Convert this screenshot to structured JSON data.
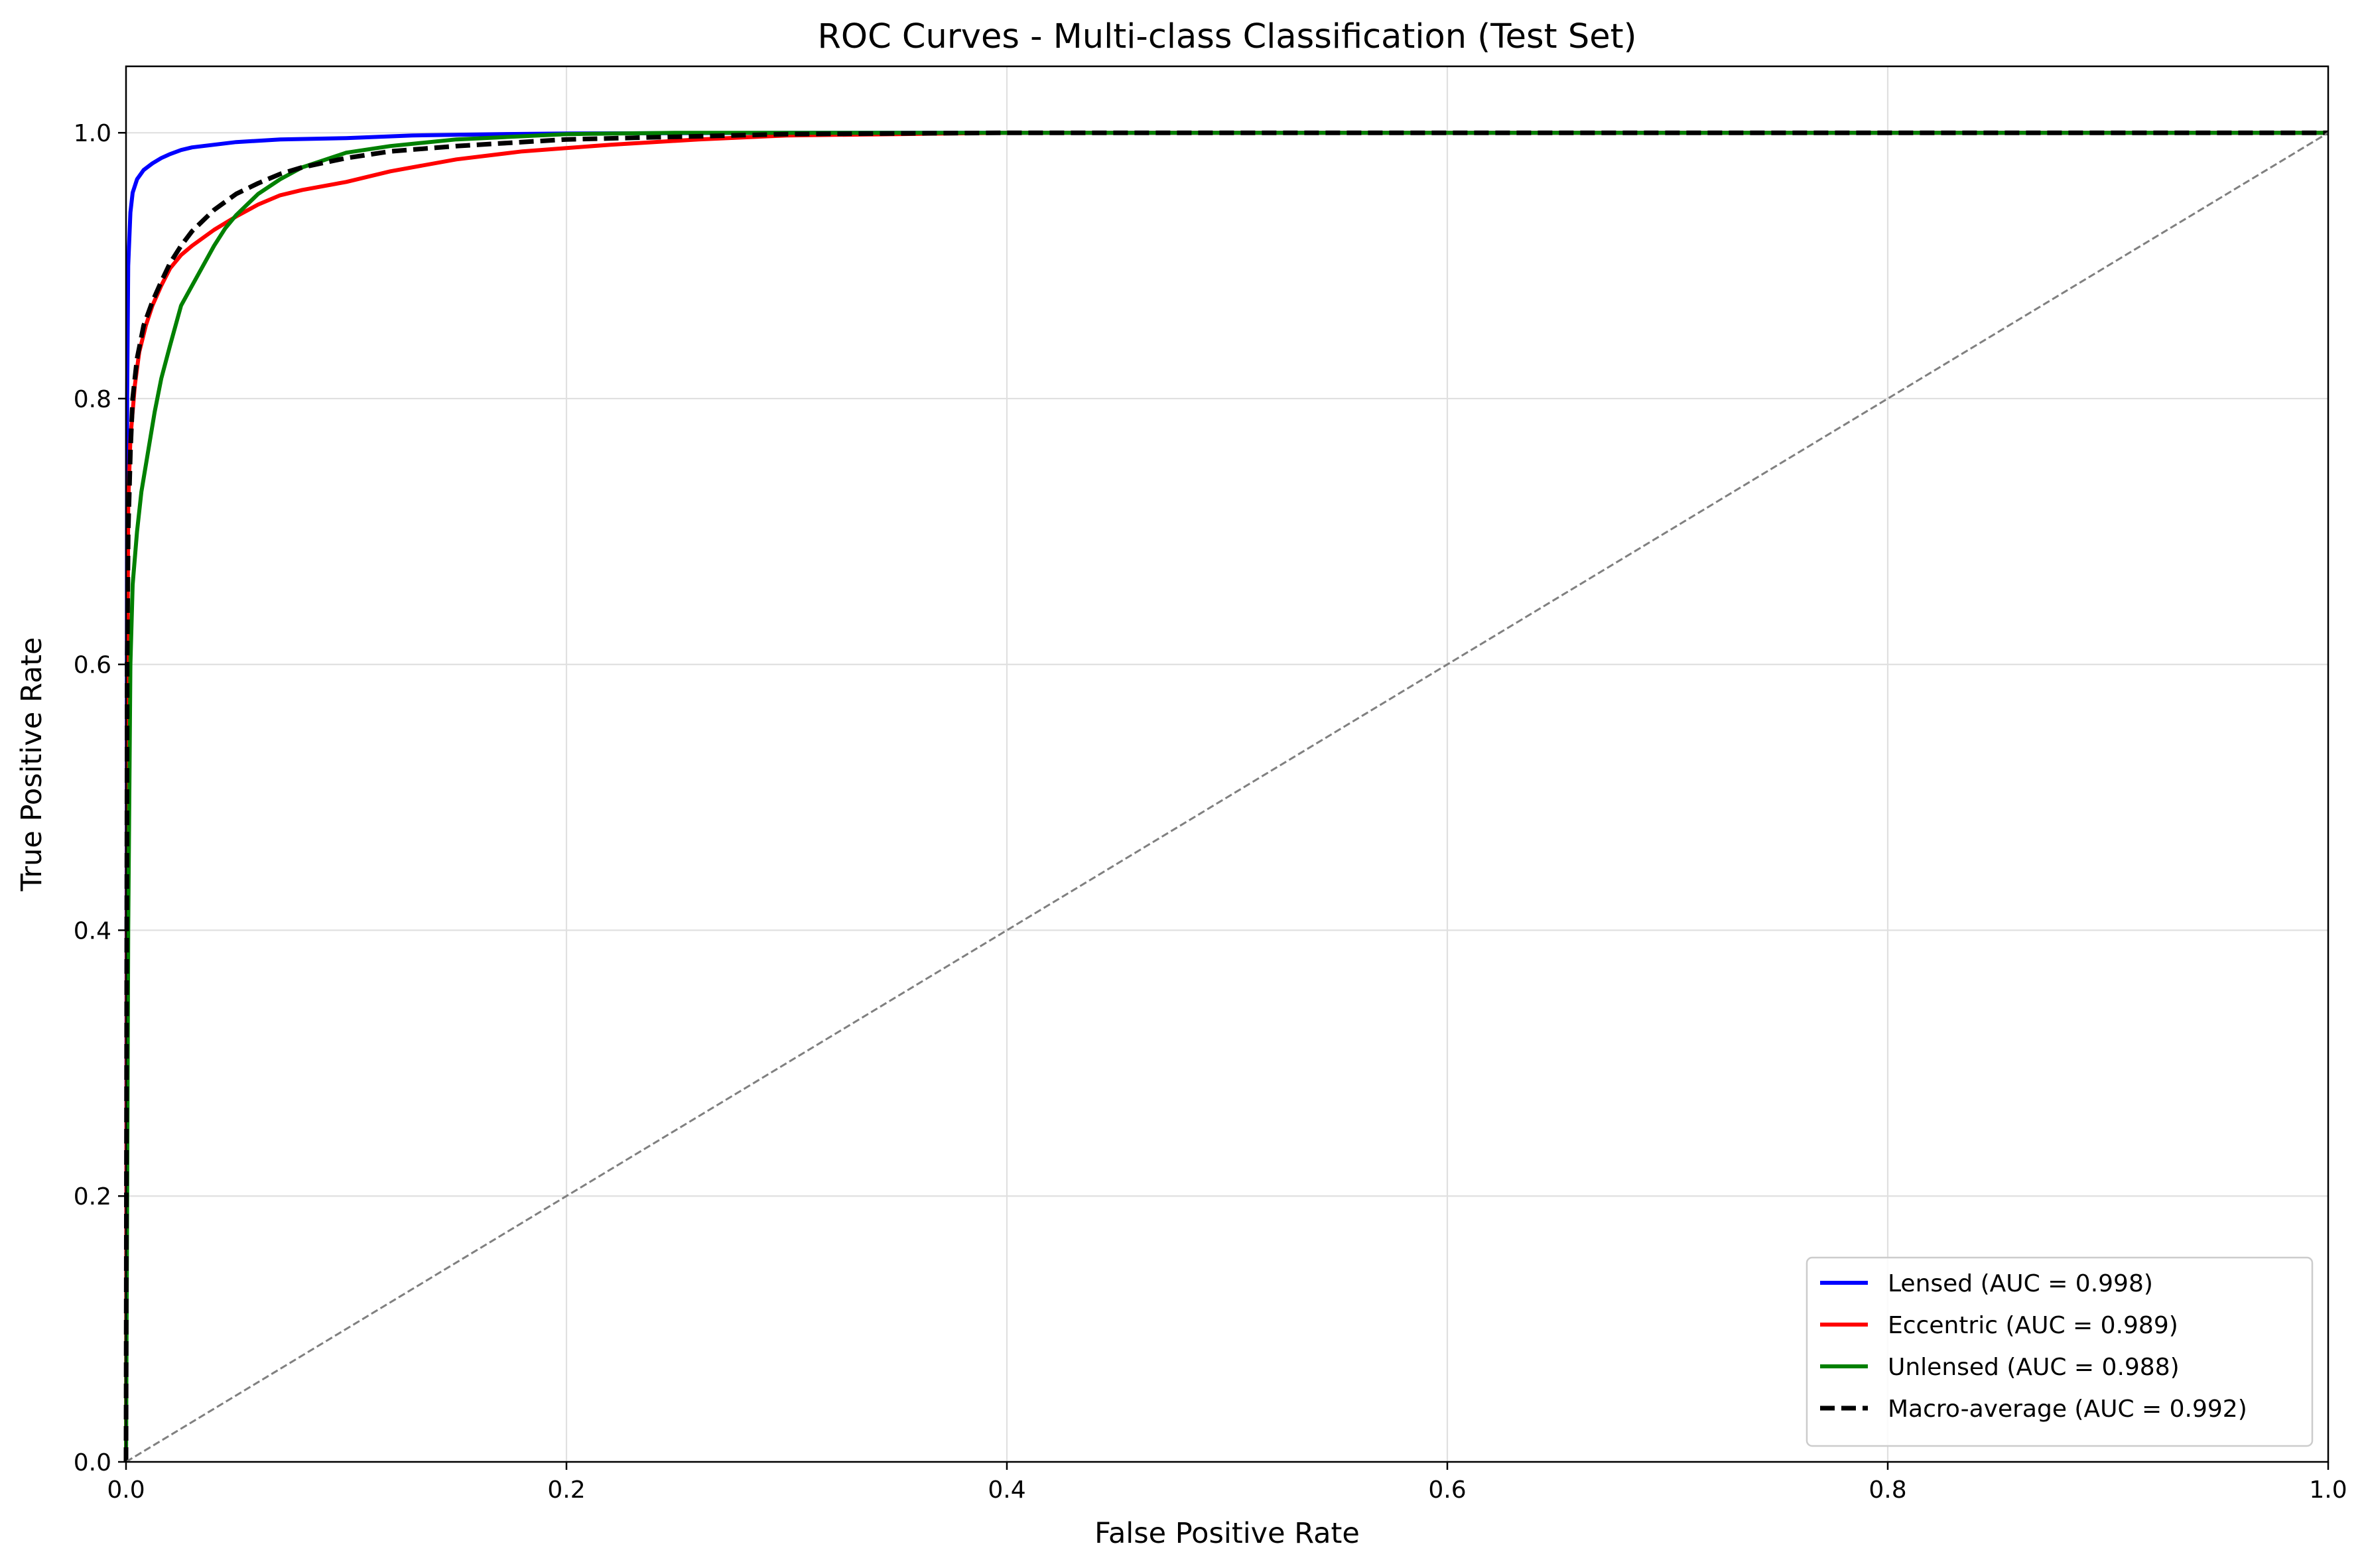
{
  "chart_data": {
    "type": "line",
    "title": "ROC Curves - Multi-class Classification (Test Set)",
    "xlabel": "False Positive Rate",
    "ylabel": "True Positive Rate",
    "xlim": [
      0.0,
      1.0
    ],
    "ylim": [
      0.0,
      1.05
    ],
    "xticks": [
      0.0,
      0.2,
      0.4,
      0.6,
      0.8,
      1.0
    ],
    "yticks": [
      0.0,
      0.2,
      0.4,
      0.6,
      0.8,
      1.0
    ],
    "xtick_labels": [
      "0.0",
      "0.2",
      "0.4",
      "0.6",
      "0.8",
      "1.0"
    ],
    "ytick_labels": [
      "0.0",
      "0.2",
      "0.4",
      "0.6",
      "0.8",
      "1.0"
    ],
    "grid": true,
    "legend_position": "lower-right",
    "series": [
      {
        "name": "Lensed (AUC = 0.998)",
        "color": "#0000ff",
        "style": "solid",
        "x": [
          0,
          0.0005,
          0.001,
          0.002,
          0.003,
          0.005,
          0.008,
          0.012,
          0.016,
          0.02,
          0.025,
          0.03,
          0.04,
          0.05,
          0.07,
          0.1,
          0.13,
          0.17,
          0.2,
          0.3,
          0.4,
          0.6,
          0.8,
          1.0
        ],
        "y": [
          0,
          0.8,
          0.9,
          0.94,
          0.955,
          0.965,
          0.972,
          0.977,
          0.981,
          0.984,
          0.987,
          0.989,
          0.991,
          0.993,
          0.995,
          0.996,
          0.998,
          0.999,
          0.9995,
          1.0,
          1.0,
          1.0,
          1.0,
          1.0
        ]
      },
      {
        "name": "Eccentric (AUC = 0.989)",
        "color": "#ff0000",
        "style": "solid",
        "x": [
          0,
          0.0005,
          0.001,
          0.002,
          0.004,
          0.006,
          0.009,
          0.012,
          0.016,
          0.02,
          0.025,
          0.03,
          0.04,
          0.05,
          0.06,
          0.07,
          0.08,
          0.1,
          0.12,
          0.15,
          0.18,
          0.22,
          0.26,
          0.3,
          0.35,
          0.4,
          0.6,
          0.8,
          1.0
        ],
        "y": [
          0,
          0.55,
          0.72,
          0.77,
          0.81,
          0.835,
          0.855,
          0.87,
          0.885,
          0.898,
          0.908,
          0.915,
          0.927,
          0.937,
          0.946,
          0.953,
          0.957,
          0.963,
          0.971,
          0.98,
          0.986,
          0.991,
          0.995,
          0.998,
          0.999,
          1.0,
          1.0,
          1.0,
          1.0
        ]
      },
      {
        "name": "Unlensed (AUC = 0.988)",
        "color": "#008000",
        "style": "solid",
        "x": [
          0,
          0.0005,
          0.001,
          0.002,
          0.003,
          0.005,
          0.007,
          0.01,
          0.013,
          0.016,
          0.02,
          0.025,
          0.03,
          0.035,
          0.04,
          0.045,
          0.05,
          0.06,
          0.07,
          0.08,
          0.1,
          0.12,
          0.15,
          0.2,
          0.25,
          0.3,
          0.4,
          0.6,
          0.8,
          1.0
        ],
        "y": [
          0,
          0.2,
          0.4,
          0.6,
          0.66,
          0.7,
          0.73,
          0.76,
          0.79,
          0.815,
          0.84,
          0.87,
          0.885,
          0.9,
          0.915,
          0.928,
          0.938,
          0.954,
          0.965,
          0.974,
          0.985,
          0.99,
          0.995,
          0.999,
          1.0,
          1.0,
          1.0,
          1.0,
          1.0,
          1.0
        ]
      },
      {
        "name": "Macro-average (AUC = 0.992)",
        "color": "#000000",
        "style": "dashed",
        "x": [
          0,
          0.0005,
          0.001,
          0.002,
          0.003,
          0.005,
          0.008,
          0.012,
          0.016,
          0.02,
          0.025,
          0.03,
          0.04,
          0.05,
          0.06,
          0.07,
          0.08,
          0.1,
          0.12,
          0.15,
          0.2,
          0.25,
          0.3,
          0.4,
          0.6,
          0.8,
          1.0
        ],
        "y": [
          0,
          0.6,
          0.7,
          0.76,
          0.8,
          0.83,
          0.855,
          0.873,
          0.888,
          0.902,
          0.915,
          0.926,
          0.942,
          0.954,
          0.962,
          0.969,
          0.974,
          0.981,
          0.986,
          0.99,
          0.995,
          0.997,
          0.999,
          1.0,
          1.0,
          1.0,
          1.0
        ]
      },
      {
        "color": "#808080",
        "style": "dashed-thin",
        "x": [
          0,
          1
        ],
        "y": [
          0,
          1
        ]
      }
    ]
  }
}
